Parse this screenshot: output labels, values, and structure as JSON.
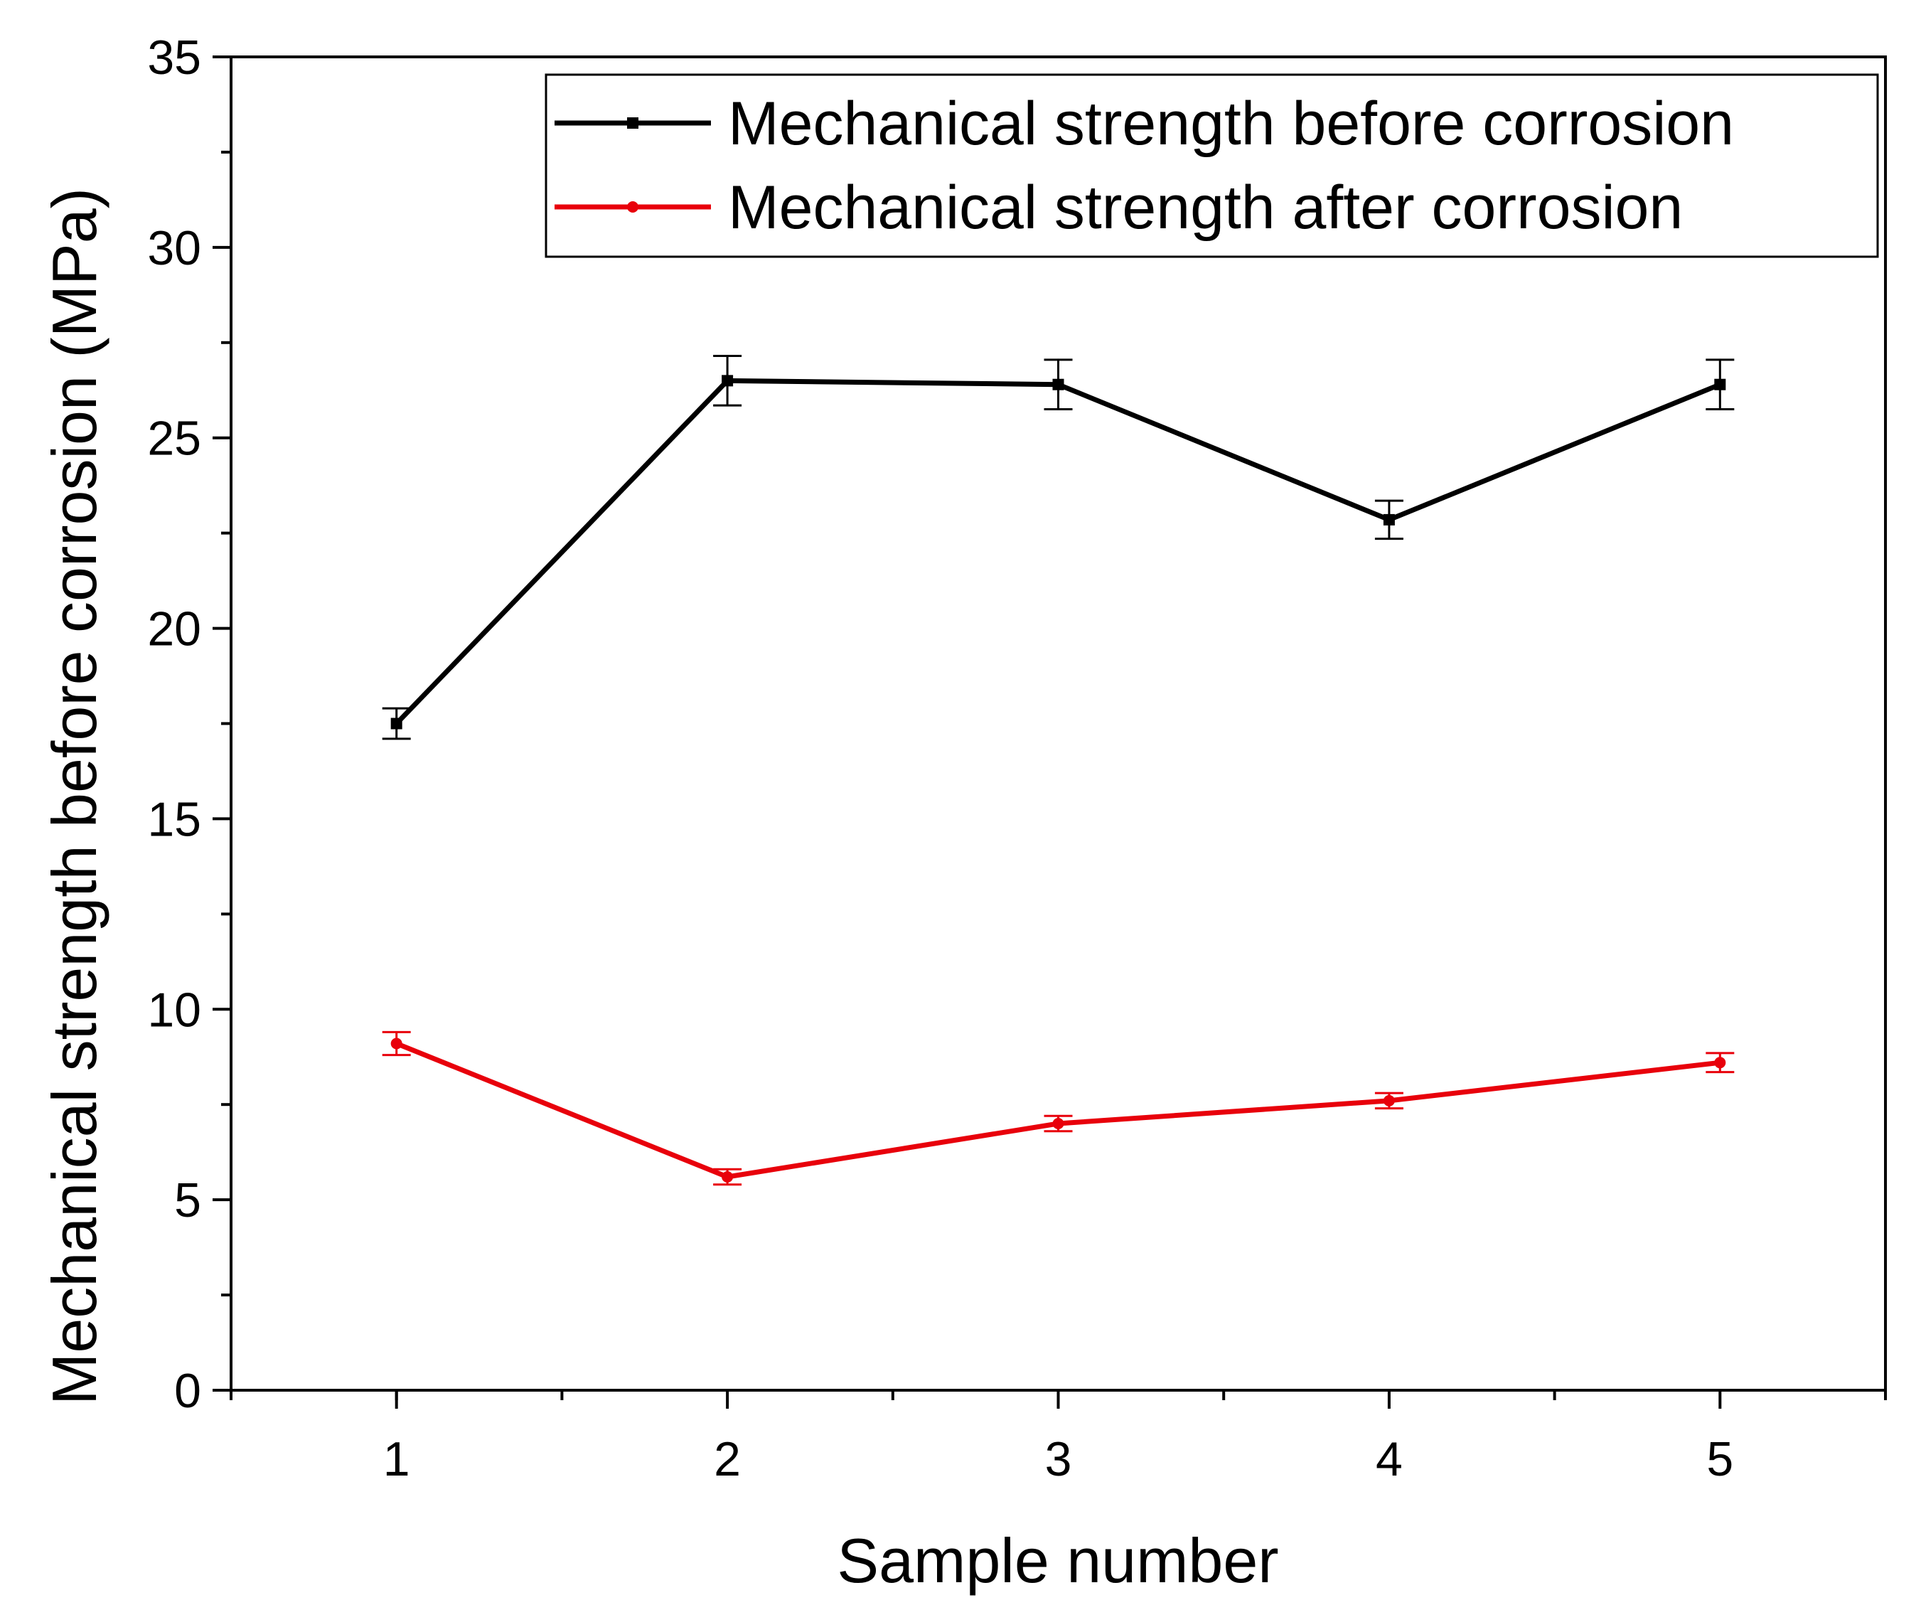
{
  "chart_data": {
    "type": "line",
    "title": "",
    "xlabel": "Sample number",
    "ylabel": "Mechanical strength before corrosion (MPa)",
    "x": [
      1,
      2,
      3,
      4,
      5
    ],
    "xlim": [
      0.5,
      5.5
    ],
    "ylim": [
      0,
      35
    ],
    "x_ticks": [
      1,
      2,
      3,
      4,
      5
    ],
    "y_ticks": [
      0,
      5,
      10,
      15,
      20,
      25,
      30,
      35
    ],
    "grid": false,
    "legend_position": "top-right",
    "series": [
      {
        "name": "Mechanical strength before corrosion",
        "color": "#000000",
        "values": [
          17.5,
          26.5,
          26.4,
          22.85,
          26.4
        ],
        "errors": [
          0.4,
          0.65,
          0.65,
          0.5,
          0.65
        ]
      },
      {
        "name": "Mechanical strength after corrosion",
        "color": "#e8000b",
        "values": [
          9.1,
          5.6,
          7.0,
          7.6,
          8.6
        ],
        "errors": [
          0.3,
          0.2,
          0.2,
          0.2,
          0.25
        ]
      }
    ]
  }
}
